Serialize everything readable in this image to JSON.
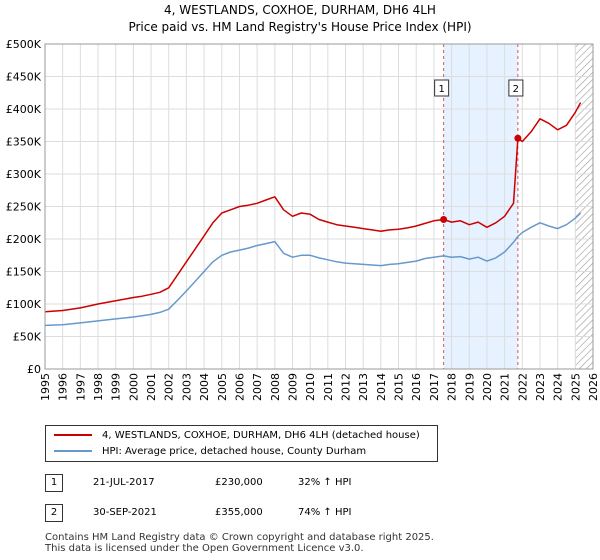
{
  "chart_data": {
    "type": "line",
    "title": "4, WESTLANDS, COXHOE, DURHAM, DH6 4LH",
    "subtitle": "Price paid vs. HM Land Registry's House Price Index (HPI)",
    "xlim": [
      1995,
      2026
    ],
    "ylim": [
      0,
      500000
    ],
    "x_ticks": [
      1995,
      1996,
      1997,
      1998,
      1999,
      2000,
      2001,
      2002,
      2003,
      2004,
      2005,
      2006,
      2007,
      2008,
      2009,
      2010,
      2011,
      2012,
      2013,
      2014,
      2015,
      2016,
      2017,
      2018,
      2019,
      2020,
      2021,
      2022,
      2023,
      2024,
      2025,
      2026
    ],
    "y_ticks": [
      0,
      50000,
      100000,
      150000,
      200000,
      250000,
      300000,
      350000,
      400000,
      450000,
      500000
    ],
    "y_tick_labels": [
      "£0",
      "£50K",
      "£100K",
      "£150K",
      "£200K",
      "£250K",
      "£300K",
      "£350K",
      "£400K",
      "£450K",
      "£500K"
    ],
    "series": [
      {
        "name": "4, WESTLANDS, COXHOE, DURHAM, DH6 4LH (detached house)",
        "color": "#cc0000",
        "x": [
          1995,
          1996,
          1997,
          1998,
          1999,
          2000,
          2000.5,
          2001,
          2001.5,
          2002,
          2002.5,
          2003,
          2003.5,
          2004,
          2004.5,
          2005,
          2005.5,
          2006,
          2006.5,
          2007,
          2007.5,
          2008,
          2008.5,
          2009,
          2009.5,
          2010,
          2010.5,
          2011,
          2011.5,
          2012,
          2012.5,
          2013,
          2013.5,
          2014,
          2014.5,
          2015,
          2015.5,
          2016,
          2016.5,
          2017,
          2017.55,
          2018,
          2018.5,
          2019,
          2019.5,
          2020,
          2020.5,
          2021,
          2021.5,
          2021.75,
          2022,
          2022.5,
          2023,
          2023.5,
          2024,
          2024.5,
          2025,
          2025.3
        ],
        "y": [
          88000,
          90000,
          94000,
          100000,
          105000,
          110000,
          112000,
          115000,
          118000,
          125000,
          145000,
          165000,
          185000,
          205000,
          225000,
          240000,
          245000,
          250000,
          252000,
          255000,
          260000,
          265000,
          245000,
          235000,
          240000,
          238000,
          230000,
          226000,
          222000,
          220000,
          218000,
          216000,
          214000,
          212000,
          214000,
          215000,
          217000,
          220000,
          224000,
          228000,
          230000,
          226000,
          228000,
          222000,
          226000,
          218000,
          225000,
          235000,
          255000,
          355000,
          350000,
          365000,
          385000,
          378000,
          368000,
          375000,
          395000,
          410000
        ]
      },
      {
        "name": "HPI: Average price, detached house, County Durham",
        "color": "#6699cc",
        "x": [
          1995,
          1996,
          1997,
          1998,
          1999,
          2000,
          2000.5,
          2001,
          2001.5,
          2002,
          2002.5,
          2003,
          2003.5,
          2004,
          2004.5,
          2005,
          2005.5,
          2006,
          2006.5,
          2007,
          2007.5,
          2008,
          2008.5,
          2009,
          2009.5,
          2010,
          2010.5,
          2011,
          2011.5,
          2012,
          2012.5,
          2013,
          2013.5,
          2014,
          2014.5,
          2015,
          2015.5,
          2016,
          2016.5,
          2017,
          2017.55,
          2018,
          2018.5,
          2019,
          2019.5,
          2020,
          2020.5,
          2021,
          2021.5,
          2021.75,
          2022,
          2022.5,
          2023,
          2023.5,
          2024,
          2024.5,
          2025,
          2025.3
        ],
        "y": [
          67000,
          68000,
          71000,
          74000,
          77000,
          80000,
          82000,
          84000,
          87000,
          92000,
          106000,
          120000,
          135000,
          150000,
          165000,
          175000,
          180000,
          183000,
          186000,
          190000,
          193000,
          196000,
          178000,
          172000,
          175000,
          175000,
          171000,
          168000,
          165000,
          163000,
          162000,
          161000,
          160000,
          159000,
          161000,
          162000,
          164000,
          166000,
          170000,
          172000,
          174000,
          172000,
          173000,
          169000,
          172000,
          166000,
          171000,
          180000,
          195000,
          204000,
          210000,
          218000,
          225000,
          220000,
          216000,
          222000,
          232000,
          240000
        ]
      }
    ],
    "shaded_region": {
      "from": 2017.55,
      "to": 2021.75,
      "color": "#ddeeff"
    },
    "hatched_region": {
      "from": 2025.0,
      "to": 2026
    },
    "markers": [
      {
        "label": "1",
        "x": 2017.55,
        "y": 230000
      },
      {
        "label": "2",
        "x": 2021.75,
        "y": 355000
      }
    ]
  },
  "legend": {
    "entries": [
      {
        "label": "4, WESTLANDS, COXHOE, DURHAM, DH6 4LH (detached house)",
        "color": "#cc0000"
      },
      {
        "label": "HPI: Average price, detached house, County Durham",
        "color": "#6699cc"
      }
    ]
  },
  "transactions": [
    {
      "num": "1",
      "date": "21-JUL-2017",
      "price": "£230,000",
      "hpi": "32% ↑ HPI"
    },
    {
      "num": "2",
      "date": "30-SEP-2021",
      "price": "£355,000",
      "hpi": "74% ↑ HPI"
    }
  ],
  "footer": {
    "line1": "Contains HM Land Registry data © Crown copyright and database right 2025.",
    "line2": "This data is licensed under the Open Government Licence v3.0."
  }
}
